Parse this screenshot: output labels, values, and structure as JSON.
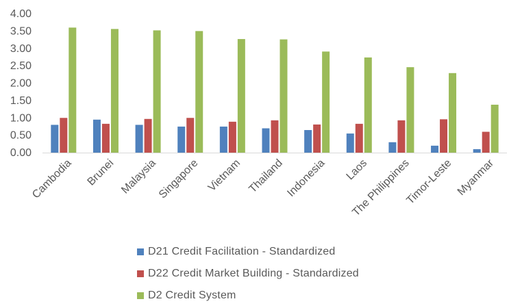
{
  "chart_data": {
    "type": "bar",
    "categories": [
      "Cambodia",
      "Brunei",
      "Malaysia",
      "Singapore",
      "Vietnam",
      "Thailand",
      "Indonesia",
      "Laos",
      "The Philippines",
      "Timor-Leste",
      "Myanmar"
    ],
    "series": [
      {
        "name": "D21 Credit Facilitation - Standardized",
        "color": "#4f81bd",
        "values": [
          0.8,
          0.95,
          0.8,
          0.75,
          0.75,
          0.7,
          0.65,
          0.55,
          0.3,
          0.2,
          0.1
        ]
      },
      {
        "name": "D22 Credit Market Building - Standardized",
        "color": "#c0504d",
        "values": [
          1.0,
          0.83,
          0.97,
          1.0,
          0.89,
          0.93,
          0.81,
          0.83,
          0.93,
          0.96,
          0.6
        ]
      },
      {
        "name": "D2 Credit System",
        "color": "#9bbb59",
        "values": [
          3.6,
          3.56,
          3.52,
          3.5,
          3.27,
          3.26,
          2.91,
          2.74,
          2.46,
          2.29,
          1.38
        ]
      }
    ],
    "yticks": [
      "0.00",
      "0.50",
      "1.00",
      "1.50",
      "2.00",
      "2.50",
      "3.00",
      "3.50",
      "4.00"
    ],
    "ylim": [
      0,
      4
    ],
    "grid": false,
    "legend_position": "bottom"
  }
}
